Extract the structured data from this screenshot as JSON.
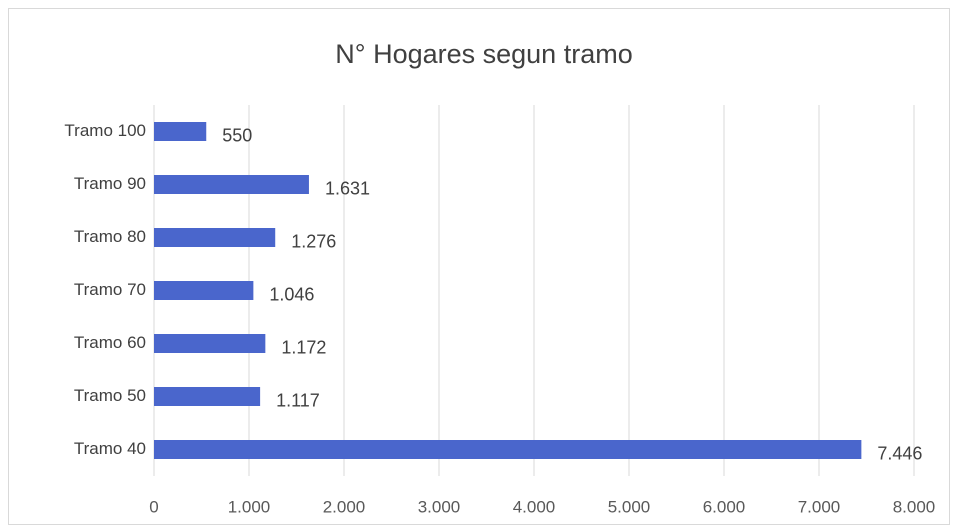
{
  "chart_data": {
    "type": "bar",
    "orientation": "horizontal",
    "title": "N° Hogares segun tramo",
    "categories": [
      "Tramo 40",
      "Tramo 50",
      "Tramo 60",
      "Tramo 70",
      "Tramo 80",
      "Tramo 90",
      "Tramo 100"
    ],
    "values": [
      7446,
      1117,
      1172,
      1046,
      1276,
      1631,
      550
    ],
    "value_labels": [
      "7.446",
      "1.117",
      "1.172",
      "1.046",
      "1.276",
      "1.631",
      "550"
    ],
    "color": "#4a66cc",
    "xlim": [
      0,
      8000
    ],
    "xticks": [
      0,
      {
        "value": 1000,
        "label": "1.000"
      },
      {
        "value": 2000,
        "label": "2.000"
      },
      {
        "value": 3000,
        "label": "3.000"
      },
      {
        "value": 4000,
        "label": "4.000"
      },
      {
        "value": 5000,
        "label": "5.000"
      },
      {
        "value": 6000,
        "label": "6.000"
      },
      {
        "value": 7000,
        "label": "7.000"
      },
      {
        "value": 8000,
        "label": "8.000"
      }
    ],
    "grid": true
  }
}
